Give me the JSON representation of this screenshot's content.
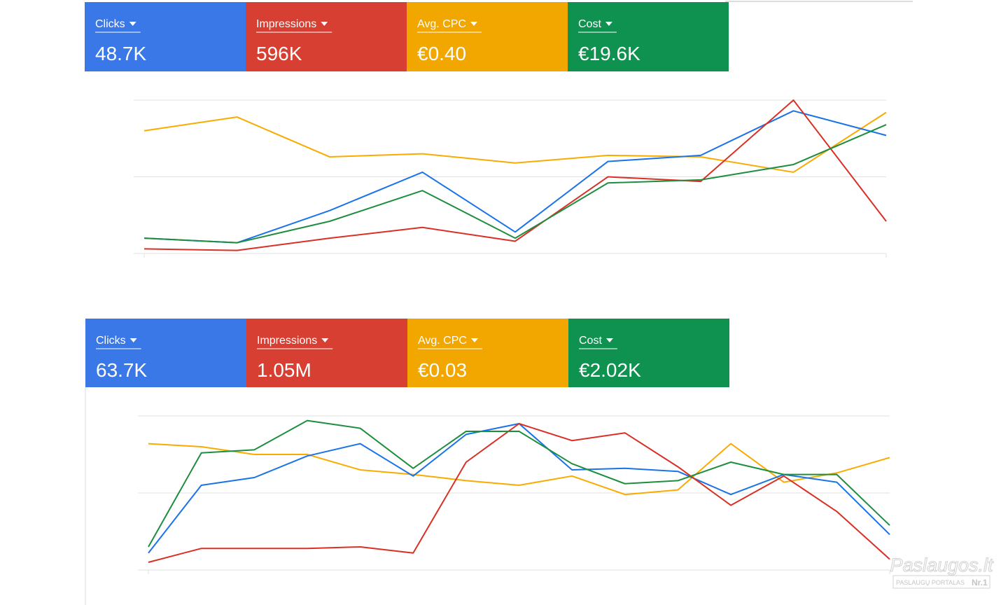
{
  "chart_data": [
    {
      "type": "line",
      "scorecards": [
        {
          "label": "Clicks",
          "value": "48.7K",
          "color": "#3b78e7"
        },
        {
          "label": "Impressions",
          "value": "596K",
          "color": "#d63f31"
        },
        {
          "label": "Avg. CPC",
          "value": "€0.40",
          "color": "#f2a600"
        },
        {
          "label": "Cost",
          "value": "€19.6K",
          "color": "#0f9250"
        }
      ],
      "ylim": [
        0,
        100
      ],
      "yticks": [
        0,
        50,
        100
      ],
      "grid": true,
      "series": [
        {
          "name": "Avg. CPC",
          "color": "#f9ab00",
          "values": [
            80,
            89,
            63,
            65,
            59,
            64,
            63,
            53,
            92
          ]
        },
        {
          "name": "Clicks",
          "color": "#1a73e8",
          "values": [
            10,
            7,
            28,
            53,
            14,
            60,
            64,
            93,
            77
          ]
        },
        {
          "name": "Impressions",
          "color": "#d93025",
          "values": [
            3,
            2,
            10,
            17,
            8,
            50,
            47,
            100,
            21
          ]
        },
        {
          "name": "Cost",
          "color": "#1e8e3e",
          "values": [
            10,
            7,
            21,
            41,
            10,
            46,
            48,
            58,
            84
          ]
        }
      ]
    },
    {
      "type": "line",
      "scorecards": [
        {
          "label": "Clicks",
          "value": "63.7K",
          "color": "#3b78e7"
        },
        {
          "label": "Impressions",
          "value": "1.05M",
          "color": "#d63f31"
        },
        {
          "label": "Avg. CPC",
          "value": "€0.03",
          "color": "#f2a600"
        },
        {
          "label": "Cost",
          "value": "€2.02K",
          "color": "#0f9250"
        }
      ],
      "ylim": [
        0,
        100
      ],
      "yticks": [
        0,
        50,
        100
      ],
      "grid": true,
      "series": [
        {
          "name": "Avg. CPC",
          "color": "#f9ab00",
          "values": [
            82,
            80,
            75,
            75,
            65,
            62,
            58,
            55,
            61,
            49,
            52,
            82,
            57,
            63,
            73
          ]
        },
        {
          "name": "Clicks",
          "color": "#1a73e8",
          "values": [
            11,
            55,
            60,
            74,
            82,
            61,
            88,
            95,
            65,
            66,
            64,
            49,
            62,
            57,
            23
          ]
        },
        {
          "name": "Impressions",
          "color": "#d93025",
          "values": [
            5,
            14,
            14,
            14,
            15,
            11,
            70,
            95,
            84,
            89,
            67,
            42,
            61,
            38,
            7
          ]
        },
        {
          "name": "Cost",
          "color": "#1e8e3e",
          "values": [
            15,
            76,
            78,
            97,
            92,
            66,
            90,
            90,
            69,
            56,
            58,
            70,
            62,
            62,
            29
          ]
        }
      ]
    }
  ],
  "watermark": {
    "title": "Paslaugos.lt",
    "subtitle": "PASLAUGŲ PORTALAS",
    "badge": "Nr.1"
  }
}
